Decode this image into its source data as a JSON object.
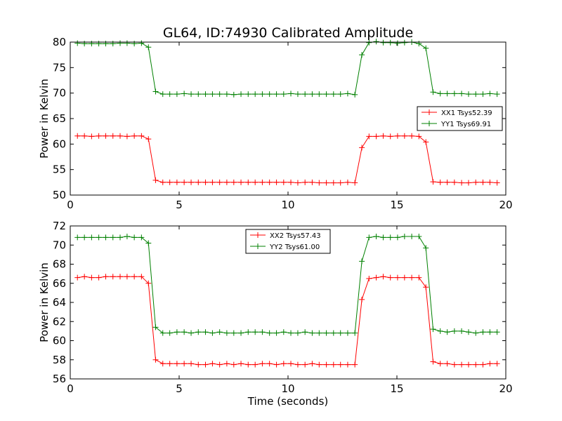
{
  "figure": {
    "title": "GL64, ID:74930 Calibrated Amplitude"
  },
  "chart_data": [
    {
      "type": "line",
      "xlabel": "",
      "ylabel": "Power in Kelvin",
      "xlim": [
        0,
        20
      ],
      "ylim": [
        50,
        80
      ],
      "xticks": [
        0,
        5,
        10,
        15,
        20
      ],
      "yticks": [
        50,
        55,
        60,
        65,
        70,
        75,
        80
      ],
      "grid": false,
      "legend_position": "center-right",
      "x": [
        0.33,
        0.65,
        0.98,
        1.31,
        1.63,
        1.96,
        2.29,
        2.61,
        2.94,
        3.27,
        3.59,
        3.92,
        4.25,
        4.57,
        4.9,
        5.23,
        5.55,
        5.88,
        6.21,
        6.53,
        6.86,
        7.19,
        7.51,
        7.84,
        8.17,
        8.49,
        8.82,
        9.15,
        9.47,
        9.8,
        10.13,
        10.45,
        10.78,
        11.11,
        11.43,
        11.76,
        12.09,
        12.41,
        12.74,
        13.07,
        13.39,
        13.72,
        14.05,
        14.37,
        14.7,
        15.03,
        15.35,
        15.68,
        16.01,
        16.33,
        16.66,
        16.99,
        17.31,
        17.64,
        17.97,
        18.29,
        18.62,
        18.95,
        19.27,
        19.6
      ],
      "series": [
        {
          "name": "XX1 Tsys52.39",
          "color": "#ff0000",
          "values": [
            61.6,
            61.6,
            61.5,
            61.6,
            61.6,
            61.6,
            61.6,
            61.5,
            61.6,
            61.6,
            61.0,
            52.9,
            52.5,
            52.5,
            52.5,
            52.5,
            52.5,
            52.5,
            52.5,
            52.5,
            52.5,
            52.5,
            52.5,
            52.5,
            52.5,
            52.5,
            52.5,
            52.5,
            52.5,
            52.5,
            52.5,
            52.4,
            52.5,
            52.5,
            52.4,
            52.4,
            52.4,
            52.4,
            52.5,
            52.4,
            59.3,
            61.5,
            61.5,
            61.6,
            61.5,
            61.6,
            61.6,
            61.6,
            61.5,
            60.4,
            52.6,
            52.5,
            52.5,
            52.5,
            52.4,
            52.4,
            52.5,
            52.5,
            52.5,
            52.4
          ]
        },
        {
          "name": "YY1 Tsys69.91",
          "color": "#008000",
          "values": [
            79.8,
            79.7,
            79.7,
            79.7,
            79.7,
            79.7,
            79.8,
            79.8,
            79.7,
            79.8,
            79.0,
            70.3,
            69.8,
            69.8,
            69.8,
            69.9,
            69.8,
            69.8,
            69.8,
            69.8,
            69.8,
            69.8,
            69.7,
            69.8,
            69.8,
            69.8,
            69.8,
            69.8,
            69.8,
            69.8,
            69.9,
            69.8,
            69.8,
            69.8,
            69.8,
            69.8,
            69.8,
            69.8,
            69.9,
            69.7,
            77.5,
            79.9,
            80.1,
            79.9,
            79.9,
            79.8,
            79.9,
            80.0,
            79.7,
            78.8,
            70.2,
            69.9,
            69.9,
            69.9,
            69.9,
            69.8,
            69.8,
            69.8,
            69.9,
            69.8
          ]
        }
      ]
    },
    {
      "type": "line",
      "xlabel": "Time (seconds)",
      "ylabel": "Power in Kelvin",
      "xlim": [
        0,
        20
      ],
      "ylim": [
        56,
        72
      ],
      "xticks": [
        0,
        5,
        10,
        15,
        20
      ],
      "yticks": [
        56,
        58,
        60,
        62,
        64,
        66,
        68,
        70,
        72
      ],
      "grid": false,
      "legend_position": "upper-center",
      "x": [
        0.33,
        0.65,
        0.98,
        1.31,
        1.63,
        1.96,
        2.29,
        2.61,
        2.94,
        3.27,
        3.59,
        3.92,
        4.25,
        4.57,
        4.9,
        5.23,
        5.55,
        5.88,
        6.21,
        6.53,
        6.86,
        7.19,
        7.51,
        7.84,
        8.17,
        8.49,
        8.82,
        9.15,
        9.47,
        9.8,
        10.13,
        10.45,
        10.78,
        11.11,
        11.43,
        11.76,
        12.09,
        12.41,
        12.74,
        13.07,
        13.39,
        13.72,
        14.05,
        14.37,
        14.7,
        15.03,
        15.35,
        15.68,
        16.01,
        16.33,
        16.66,
        16.99,
        17.31,
        17.64,
        17.97,
        18.29,
        18.62,
        18.95,
        19.27,
        19.6
      ],
      "series": [
        {
          "name": "XX2 Tsys57.43",
          "color": "#ff0000",
          "values": [
            66.6,
            66.7,
            66.6,
            66.6,
            66.7,
            66.7,
            66.7,
            66.7,
            66.7,
            66.7,
            66.0,
            58.0,
            57.6,
            57.6,
            57.6,
            57.6,
            57.6,
            57.5,
            57.5,
            57.6,
            57.5,
            57.6,
            57.5,
            57.6,
            57.5,
            57.5,
            57.6,
            57.6,
            57.5,
            57.6,
            57.6,
            57.5,
            57.5,
            57.6,
            57.5,
            57.5,
            57.5,
            57.5,
            57.5,
            57.5,
            64.3,
            66.5,
            66.6,
            66.7,
            66.6,
            66.6,
            66.6,
            66.6,
            66.6,
            65.6,
            57.8,
            57.6,
            57.6,
            57.5,
            57.5,
            57.5,
            57.5,
            57.5,
            57.6,
            57.6
          ]
        },
        {
          "name": "YY2 Tsys61.00",
          "color": "#008000",
          "values": [
            70.8,
            70.8,
            70.8,
            70.8,
            70.8,
            70.8,
            70.8,
            70.9,
            70.8,
            70.8,
            70.2,
            61.4,
            60.8,
            60.8,
            60.9,
            60.9,
            60.8,
            60.9,
            60.9,
            60.8,
            60.9,
            60.8,
            60.8,
            60.8,
            60.9,
            60.9,
            60.9,
            60.8,
            60.8,
            60.9,
            60.8,
            60.8,
            60.9,
            60.8,
            60.8,
            60.8,
            60.8,
            60.8,
            60.8,
            60.8,
            68.3,
            70.8,
            70.9,
            70.8,
            70.8,
            70.8,
            70.9,
            70.9,
            70.9,
            69.7,
            61.2,
            61.0,
            60.9,
            61.0,
            61.0,
            60.9,
            60.8,
            60.9,
            60.9,
            60.9
          ]
        }
      ]
    }
  ]
}
